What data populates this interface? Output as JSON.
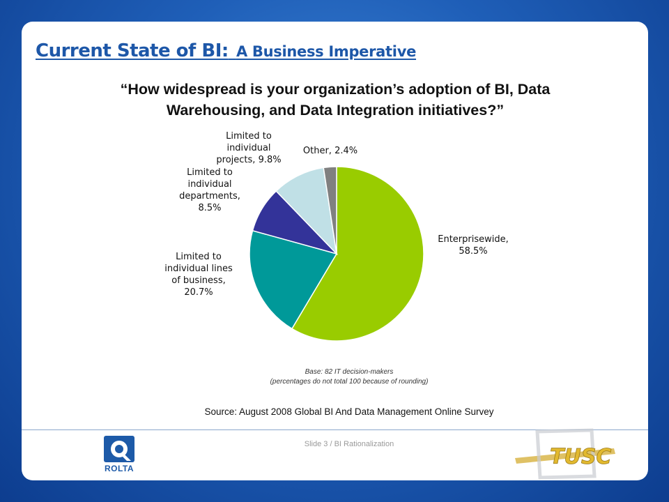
{
  "slide": {
    "title_main": "Current State of BI:",
    "title_sub": "A Business Imperative",
    "question_line1": "“How widespread is your organization’s adoption of BI, Data",
    "question_line2": "Warehousing, and Data Integration initiatives?”",
    "base_note": "Base: 82 IT decision-makers",
    "rounding_note": "(percentages do not total 100 because of rounding)",
    "source": "Source: August 2008 Global BI And Data Management Online Survey",
    "footer": "Slide 3  /  BI Rationalization",
    "logo_left": "ROLTA",
    "logo_right": "TUSC"
  },
  "colors": {
    "background": "#1f5fb8",
    "title": "#1d57a8",
    "slice_enterprisewide": "#99cc00",
    "slice_lines_of_business": "#009999",
    "slice_departments": "#333399",
    "slice_projects": "#c0e0e6",
    "slice_other": "#808080"
  },
  "chart_data": {
    "type": "pie",
    "start_angle_deg": 0,
    "direction": "clockwise",
    "slices": [
      {
        "label_lines": [
          "Enterprisewide,",
          "58.5%"
        ],
        "value": 58.5,
        "color": "#99cc00"
      },
      {
        "label_lines": [
          "Limited to",
          "individual lines",
          "of business,",
          "20.7%"
        ],
        "value": 20.7,
        "color": "#009999"
      },
      {
        "label_lines": [
          "Limited to",
          "individual",
          "departments,",
          "8.5%"
        ],
        "value": 8.5,
        "color": "#333399"
      },
      {
        "label_lines": [
          "Limited to",
          "individual",
          "projects, 9.8%"
        ],
        "value": 9.8,
        "color": "#c0e0e6"
      },
      {
        "label_lines": [
          "Other, 2.4%"
        ],
        "value": 2.4,
        "color": "#808080"
      }
    ]
  }
}
